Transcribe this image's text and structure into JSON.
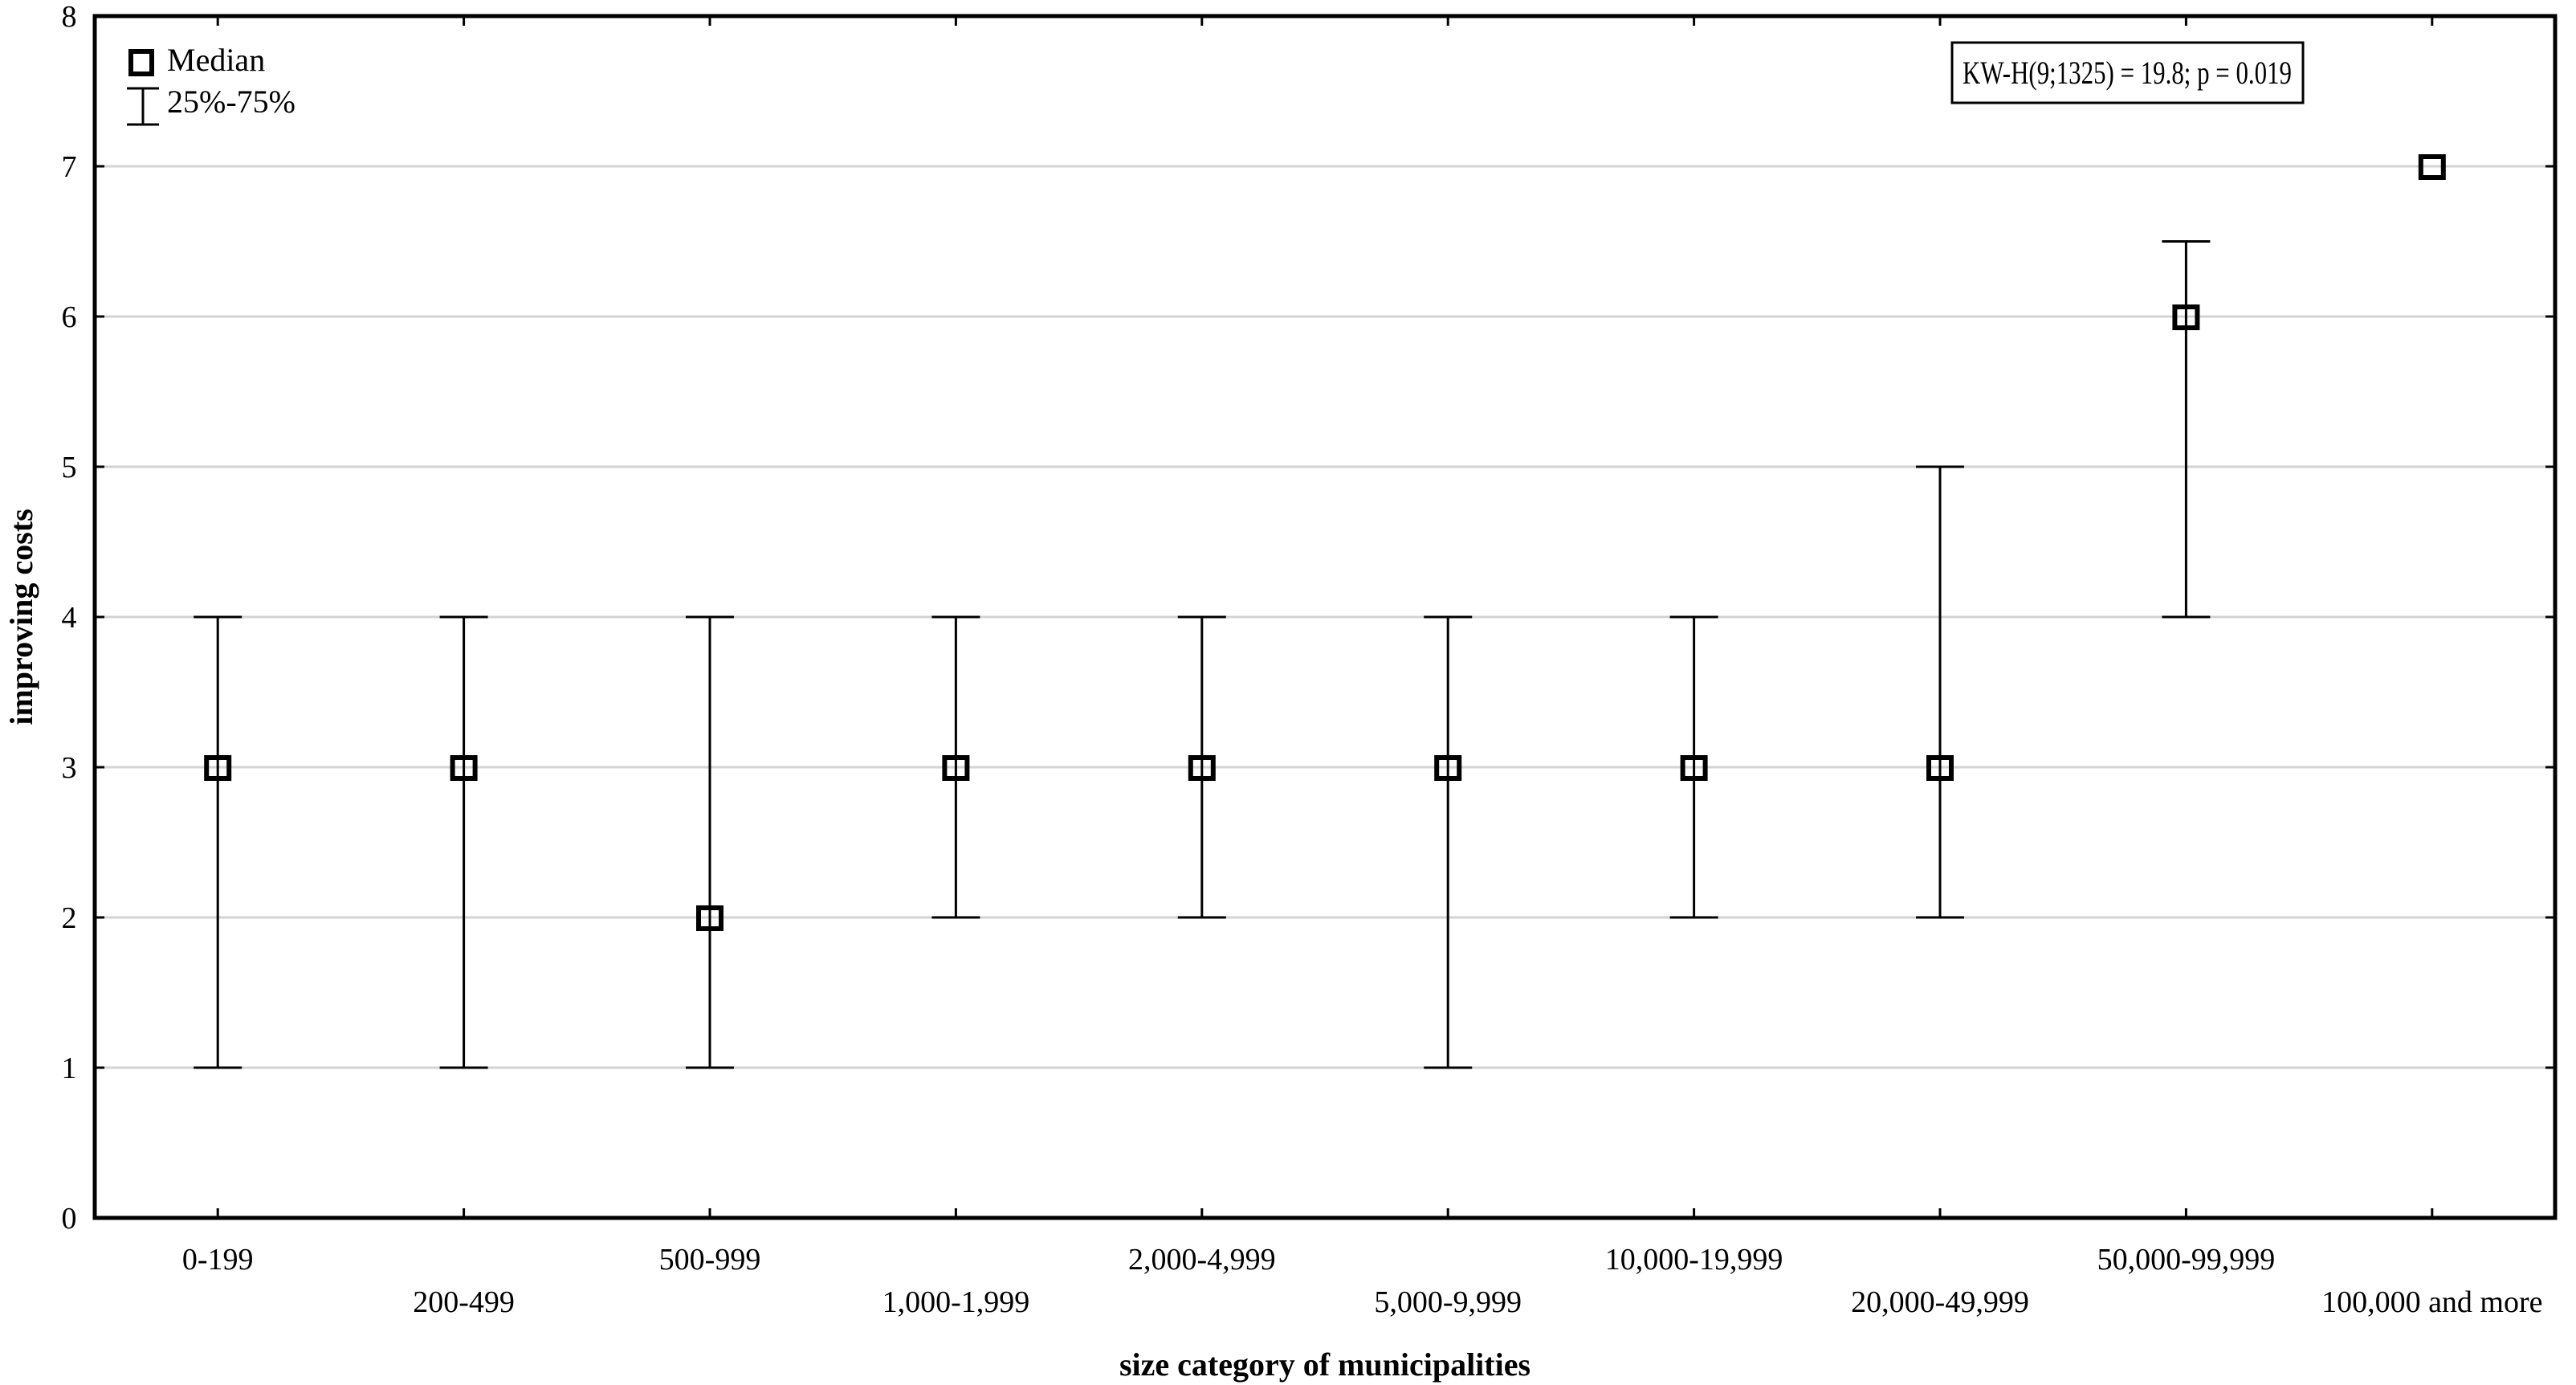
{
  "chart_data": {
    "type": "box",
    "title": "",
    "xlabel": "size category of municipalities",
    "ylabel": "improving costs",
    "ylim": [
      0,
      8
    ],
    "yticks": [
      0,
      1,
      2,
      3,
      4,
      5,
      6,
      7,
      8
    ],
    "grid": true,
    "legend_position": "top-left",
    "legend": [
      {
        "symbol": "square",
        "label": "Median"
      },
      {
        "symbol": "whisker",
        "label": "25%-75%"
      }
    ],
    "annotation": "KW-H(9;1325) = 19.8; p = 0.019",
    "categories": [
      "0-199",
      "200-499",
      "500-999",
      "1,000-1,999",
      "2,000-4,999",
      "5,000-9,999",
      "10,000-19,999",
      "20,000-49,999",
      "50,000-99,999",
      "100,000 and more"
    ],
    "series": [
      {
        "name": "Median",
        "values": [
          3,
          3,
          2,
          3,
          3,
          3,
          3,
          3,
          6,
          7
        ]
      },
      {
        "name": "25%",
        "values": [
          1,
          1,
          1,
          2,
          2,
          1,
          2,
          2,
          4,
          7
        ]
      },
      {
        "name": "75%",
        "values": [
          4,
          4,
          4,
          4,
          4,
          4,
          4,
          5,
          6.5,
          7
        ]
      }
    ]
  },
  "style": {
    "grid_color": "#d3d3d3",
    "line_color": "#000000",
    "background": "#ffffff"
  }
}
